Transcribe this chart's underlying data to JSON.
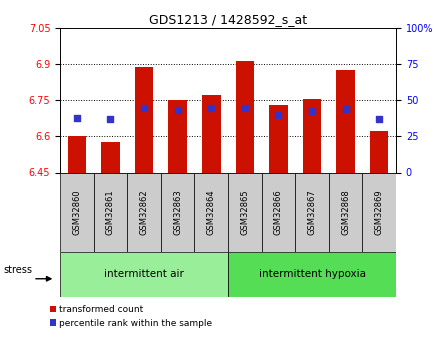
{
  "title": "GDS1213 / 1428592_s_at",
  "samples": [
    "GSM32860",
    "GSM32861",
    "GSM32862",
    "GSM32863",
    "GSM32864",
    "GSM32865",
    "GSM32866",
    "GSM32867",
    "GSM32868",
    "GSM32869"
  ],
  "bar_tops": [
    6.6,
    6.575,
    6.885,
    6.75,
    6.77,
    6.91,
    6.73,
    6.755,
    6.875,
    6.62
  ],
  "bar_base": 6.45,
  "blue_y": [
    6.675,
    6.67,
    6.718,
    6.71,
    6.718,
    6.718,
    6.69,
    6.705,
    6.714,
    6.672
  ],
  "ylim_left": [
    6.45,
    7.05
  ],
  "ylim_right": [
    0,
    100
  ],
  "yticks_left": [
    6.45,
    6.6,
    6.75,
    6.9,
    7.05
  ],
  "yticks_right": [
    0,
    25,
    50,
    75,
    100
  ],
  "ytick_labels_right": [
    "0",
    "25",
    "50",
    "75",
    "100%"
  ],
  "bar_color": "#cc1100",
  "blue_color": "#3333cc",
  "group1_label": "intermittent air",
  "group2_label_actual": "intermittent hypoxia",
  "stress_label": "stress",
  "legend_bar_label": "transformed count",
  "legend_blue_label": "percentile rank within the sample",
  "group_bar_bg": "#cccccc",
  "group1_bg": "#99ee99",
  "group2_bg": "#55dd55",
  "group1_count": 5,
  "group2_count": 5
}
